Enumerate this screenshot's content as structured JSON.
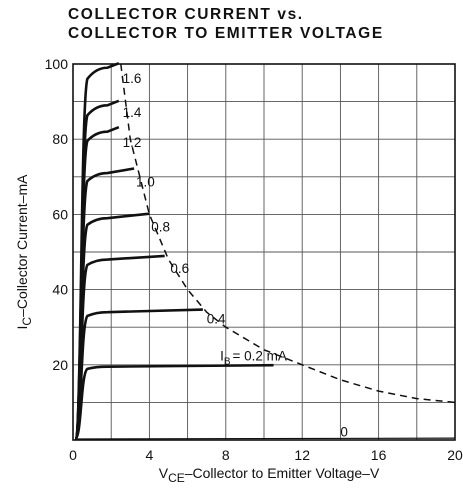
{
  "title_line1": "COLLECTOR CURRENT vs.",
  "title_line2": "COLLECTOR TO EMITTER VOLTAGE",
  "chart_data": {
    "type": "line",
    "title": "COLLECTOR CURRENT vs. COLLECTOR TO EMITTER VOLTAGE",
    "xlabel": {
      "main": "V",
      "sub": "CE",
      "rest": "–Collector to Emitter Voltage–V"
    },
    "ylabel": {
      "main": "I",
      "sub": "C",
      "rest": "–Collector Current–mA"
    },
    "xlim": [
      0,
      20
    ],
    "ylim": [
      0,
      100
    ],
    "xticks": [
      "0",
      "4",
      "8",
      "12",
      "16",
      "20"
    ],
    "yticks": [
      "20",
      "40",
      "60",
      "80",
      "100"
    ],
    "grid": true,
    "param_prefix": "I",
    "param_sub": "B",
    "param_suffix": "= 0.2  mA",
    "series": [
      {
        "name": "1.6",
        "flat_ic": 99,
        "end_vce": 2.4
      },
      {
        "name": "1.4",
        "flat_ic": 89,
        "end_vce": 2.4
      },
      {
        "name": "1.2",
        "flat_ic": 82,
        "end_vce": 2.4
      },
      {
        "name": "1.0",
        "flat_ic": 71,
        "end_vce": 3.2
      },
      {
        "name": "0.8",
        "flat_ic": 59,
        "end_vce": 4.0
      },
      {
        "name": "0.6",
        "flat_ic": 48,
        "end_vce": 4.8
      },
      {
        "name": "0.4",
        "flat_ic": 34,
        "end_vce": 6.8
      },
      {
        "name": "0.2",
        "flat_ic": 19.5,
        "end_vce": 10.5
      },
      {
        "name": "0",
        "flat_ic": 0.5,
        "end_vce": 20
      }
    ],
    "power_limit_curve": {
      "style": "dashed",
      "points": [
        [
          2.5,
          100
        ],
        [
          3.0,
          80
        ],
        [
          4.0,
          60
        ],
        [
          5.0,
          48
        ],
        [
          6.0,
          40
        ],
        [
          7.0,
          34
        ],
        [
          8.0,
          30
        ],
        [
          10.0,
          24
        ],
        [
          12.0,
          20
        ],
        [
          14.0,
          16
        ],
        [
          16.0,
          13
        ],
        [
          18.0,
          11
        ],
        [
          20.0,
          10
        ]
      ]
    }
  }
}
